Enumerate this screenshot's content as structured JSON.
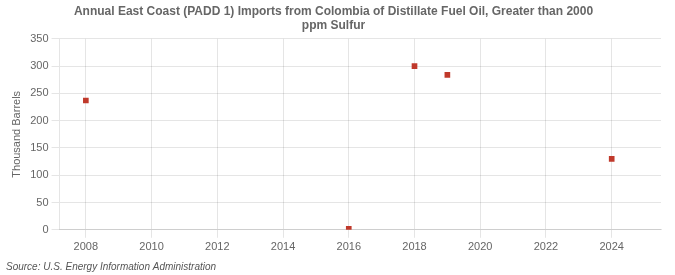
{
  "chart_data": {
    "type": "scatter",
    "title": "Annual East Coast (PADD 1) Imports from Colombia of Distillate Fuel Oil, Greater than 2000\nppm Sulfur",
    "ylabel": "Thousand Barrels",
    "annotation": "Source: U.S. Energy Information Administration",
    "x": [
      2008,
      2016,
      2018,
      2019,
      2024
    ],
    "values": [
      237,
      2,
      300,
      284,
      130
    ],
    "color": "#c0392b",
    "marker": "square",
    "xlim": [
      2007.2,
      2025.5
    ],
    "ylim": [
      0,
      350
    ],
    "xticks": [
      2008,
      2010,
      2012,
      2014,
      2016,
      2018,
      2020,
      2022,
      2024
    ],
    "yticks": [
      0,
      50,
      100,
      150,
      200,
      250,
      300,
      350
    ],
    "grid": true
  }
}
